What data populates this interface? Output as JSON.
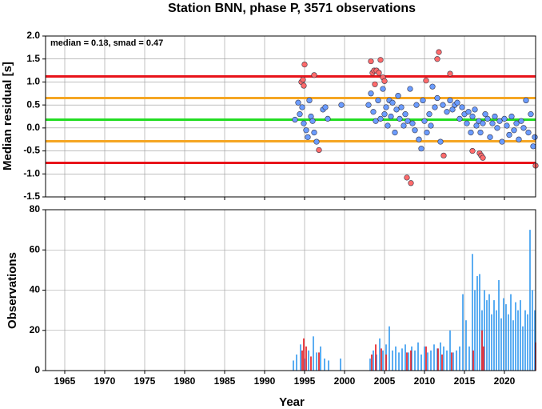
{
  "chart_data": [
    {
      "type": "scatter",
      "title": "Station BNN, phase P, 3571 observations",
      "ylabel": "Median residual [s]",
      "annotation": "median = 0.18, smad = 0.47",
      "xlim": [
        1962.6,
        2023.9
      ],
      "ylim": [
        -1.5,
        2.0
      ],
      "yticks": [
        {
          "value": 2,
          "label": "2.0"
        },
        1.5,
        {
          "value": 1,
          "label": "1.0"
        },
        0.5,
        {
          "value": 0,
          "label": "0.0"
        },
        -0.5,
        {
          "value": -1,
          "label": "-1.0"
        },
        -1.5
      ],
      "grid": true,
      "hlines": [
        {
          "value": 1.12,
          "color": "#e8141a"
        },
        {
          "value": 0.65,
          "color": "#f5a623"
        },
        {
          "value": 0.18,
          "color": "#22dd22"
        },
        {
          "value": -0.29,
          "color": "#f5a623"
        },
        {
          "value": -0.76,
          "color": "#e8141a"
        }
      ],
      "series": [
        {
          "color": "#6b9cff",
          "x": [
            1993.8,
            1994.2,
            1994.4,
            1994.7,
            1994.9,
            1995.2,
            1995.4,
            1995.6,
            1995.8,
            1996.0,
            1996.2,
            1996.5,
            1997.3,
            1997.6,
            1997.9,
            1999.6,
            2003.0,
            2003.3,
            2003.6,
            2003.9,
            2004.2,
            2004.5,
            2004.8,
            2005.0,
            2005.2,
            2005.4,
            2005.6,
            2005.8,
            2006.0,
            2006.3,
            2006.5,
            2006.7,
            2006.9,
            2007.1,
            2007.4,
            2007.6,
            2007.9,
            2008.2,
            2008.5,
            2008.8,
            2009.0,
            2009.3,
            2009.6,
            2009.8,
            2010.0,
            2010.3,
            2010.6,
            2010.8,
            2011.0,
            2011.3,
            2011.6,
            2012.0,
            2012.3,
            2012.8,
            2013.2,
            2013.5,
            2013.8,
            2014.1,
            2014.4,
            2014.7,
            2015.0,
            2015.3,
            2015.5,
            2015.8,
            2016.0,
            2016.3,
            2016.5,
            2016.8,
            2017.0,
            2017.3,
            2017.6,
            2017.9,
            2018.2,
            2018.5,
            2018.8,
            2019.1,
            2019.4,
            2019.7,
            2020.0,
            2020.3,
            2020.6,
            2020.9,
            2021.2,
            2021.5,
            2021.8,
            2022.1,
            2022.4,
            2022.7,
            2023.0,
            2023.3,
            2023.6,
            2023.8
          ],
          "values": [
            0.18,
            0.55,
            0.3,
            0.45,
            0.1,
            -0.05,
            -0.2,
            0.6,
            0.25,
            0.15,
            -0.1,
            -0.3,
            0.4,
            0.45,
            0.2,
            0.5,
            0.5,
            0.75,
            0.35,
            0.15,
            0.6,
            0.2,
            0.85,
            0.3,
            0.45,
            0.05,
            0.6,
            0.25,
            0.55,
            -0.1,
            0.4,
            0.7,
            0.2,
            0.45,
            0.05,
            0.3,
            0.15,
            0.85,
            0.1,
            -0.05,
            0.5,
            -0.25,
            -0.45,
            0.6,
            0.15,
            -0.1,
            0.3,
            0.05,
            0.9,
            0.45,
            0.65,
            -0.3,
            0.5,
            0.35,
            0.6,
            0.4,
            0.5,
            0.55,
            0.2,
            0.45,
            0.3,
            0.1,
            0.35,
            -0.1,
            0.25,
            0.4,
            0.05,
            0.15,
            -0.1,
            0.1,
            0.3,
            0.2,
            -0.2,
            0.1,
            0.25,
            0.0,
            0.15,
            -0.3,
            0.2,
            0.05,
            -0.15,
            0.25,
            -0.05,
            0.1,
            -0.25,
            0.15,
            0.0,
            0.6,
            -0.1,
            0.3,
            -0.4,
            -0.2
          ]
        },
        {
          "color": "#ff6b6b",
          "x": [
            1994.6,
            1994.8,
            1994.9,
            1995.0,
            1996.2,
            1996.8,
            2003.3,
            2003.5,
            2003.7,
            2003.8,
            2004.0,
            2004.3,
            2004.5,
            2004.8,
            2005.0,
            2007.8,
            2008.3,
            2010.2,
            2011.6,
            2011.8,
            2012.4,
            2013.2,
            2016.0,
            2016.9,
            2017.1,
            2017.3,
            2023.9
          ],
          "values": [
            1.0,
            1.05,
            0.92,
            1.38,
            1.15,
            -0.48,
            1.45,
            1.2,
            1.25,
            0.95,
            1.25,
            1.2,
            1.48,
            1.1,
            1.02,
            -1.08,
            -1.2,
            1.03,
            1.5,
            1.65,
            -0.6,
            1.18,
            -0.5,
            -0.55,
            -0.6,
            -0.65,
            -0.82
          ]
        }
      ]
    },
    {
      "type": "bar",
      "ylabel": "Observations",
      "xlabel": "Year",
      "xlim": [
        1962.6,
        2023.9
      ],
      "ylim": [
        0,
        80
      ],
      "xticks": [
        1965,
        1970,
        1975,
        1980,
        1985,
        1990,
        1995,
        2000,
        2005,
        2010,
        2015,
        2020
      ],
      "yticks": [
        0,
        20,
        40,
        60,
        80
      ],
      "grid": true,
      "series": [
        {
          "color": "#3399ee",
          "x": [
            1993.6,
            1994.0,
            1994.5,
            1995.0,
            1995.5,
            1996.1,
            1996.5,
            1997.0,
            1997.5,
            1998.0,
            1999.5,
            2003.2,
            2003.6,
            2004.0,
            2004.4,
            2004.8,
            2005.2,
            2005.6,
            2006.0,
            2006.4,
            2006.8,
            2007.2,
            2007.6,
            2008.0,
            2008.4,
            2008.8,
            2009.2,
            2009.6,
            2010.0,
            2010.4,
            2010.8,
            2011.2,
            2011.6,
            2012.0,
            2012.4,
            2012.8,
            2013.2,
            2013.6,
            2014.0,
            2014.4,
            2014.8,
            2015.2,
            2015.6,
            2016.0,
            2016.3,
            2016.6,
            2016.9,
            2017.2,
            2017.5,
            2017.8,
            2018.1,
            2018.4,
            2018.7,
            2019.0,
            2019.3,
            2019.6,
            2019.9,
            2020.2,
            2020.5,
            2020.8,
            2021.1,
            2021.4,
            2021.7,
            2022.0,
            2022.3,
            2022.6,
            2022.9,
            2023.2,
            2023.5,
            2023.8
          ],
          "values": [
            5,
            8,
            13,
            6,
            10,
            17,
            9,
            12,
            6,
            5,
            6,
            6,
            10,
            8,
            16,
            10,
            13,
            22,
            10,
            12,
            9,
            11,
            13,
            9,
            12,
            10,
            14,
            8,
            12,
            9,
            10,
            13,
            11,
            14,
            12,
            10,
            20,
            9,
            10,
            12,
            38,
            25,
            12,
            58,
            40,
            47,
            48,
            30,
            40,
            35,
            38,
            28,
            35,
            30,
            45,
            26,
            36,
            33,
            28,
            38,
            25,
            34,
            30,
            35,
            22,
            30,
            28,
            70,
            40,
            30
          ]
        },
        {
          "color": "#e8141a",
          "x": [
            1994.7,
            1994.9,
            1995.2,
            1995.8,
            1996.8,
            2003.4,
            2003.9,
            2004.6,
            2005.2,
            2007.8,
            2008.3,
            2010.2,
            2011.7,
            2012.2,
            2013.4,
            2016.1,
            2017.2,
            2017.4,
            2023.9
          ],
          "values": [
            10,
            16,
            12,
            7,
            9,
            8,
            13,
            11,
            8,
            9,
            10,
            12,
            11,
            8,
            9,
            10,
            20,
            12,
            14
          ]
        }
      ]
    }
  ]
}
